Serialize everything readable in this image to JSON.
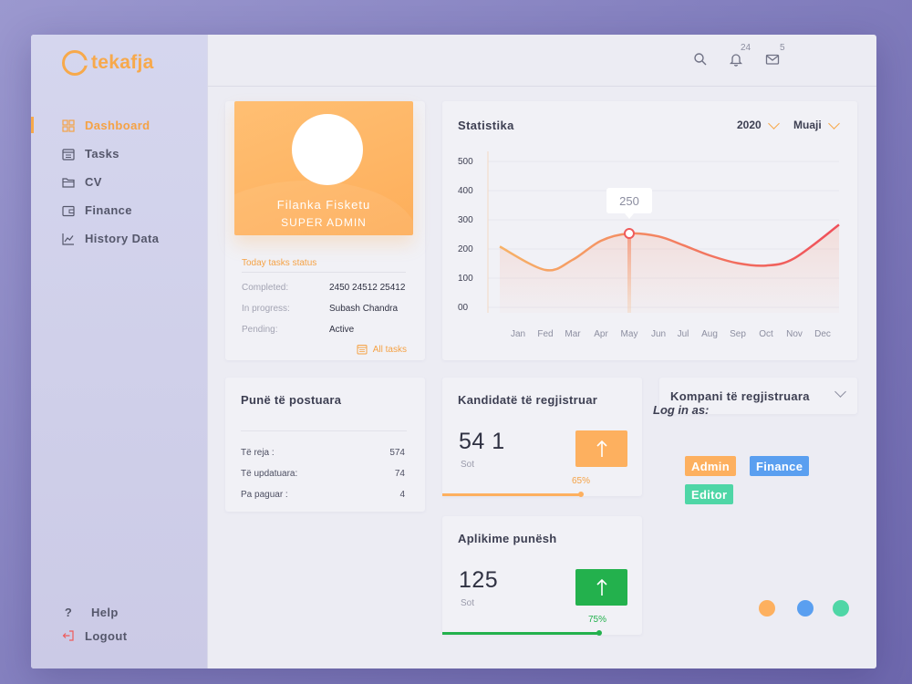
{
  "brand": {
    "name": "tekafja",
    "accent": "#f7a94b"
  },
  "sidebar": {
    "items": [
      {
        "label": "Dashboard",
        "icon": "grid-icon",
        "active": true
      },
      {
        "label": "Tasks",
        "icon": "calendar-icon",
        "active": false
      },
      {
        "label": "CV",
        "icon": "folder-icon",
        "active": false
      },
      {
        "label": "Finance",
        "icon": "wallet-icon",
        "active": false
      },
      {
        "label": "History Data",
        "icon": "line-chart-icon",
        "active": false
      }
    ],
    "help": {
      "label": "Help",
      "glyph": "?"
    },
    "logout": {
      "label": "Logout"
    }
  },
  "header": {
    "notifications_count": "24",
    "messages_count": "5"
  },
  "profile": {
    "name": "Filanka  Fisketu",
    "role": "SUPER ADMIN",
    "tasks_status_title": "Today tasks status",
    "rows": [
      {
        "key": "Completed:",
        "value": "2450 24512 25412"
      },
      {
        "key": "In progress:",
        "value": "Subash Chandra"
      },
      {
        "key": "Pending:",
        "value": "Active"
      }
    ],
    "all_tasks_label": "All tasks"
  },
  "statistika": {
    "title": "Statistika",
    "year_select": "2020",
    "period_select": "Muaji"
  },
  "chart_data": {
    "type": "line",
    "title": "Statistika",
    "categories": [
      "Jan",
      "Fed",
      "Mar",
      "Apr",
      "May",
      "Jun",
      "Jul",
      "Aug",
      "Sep",
      "Oct",
      "Nov",
      "Dec"
    ],
    "y_tick_labels": [
      "500",
      "400",
      "300",
      "200",
      "100",
      "00"
    ],
    "ylim": [
      0,
      500
    ],
    "values": [
      205,
      125,
      160,
      225,
      250,
      240,
      210,
      175,
      148,
      140,
      165,
      280
    ],
    "highlight": {
      "category": "May",
      "value": 250,
      "label": "250"
    },
    "grid": true,
    "line_colors": [
      "#f7b267",
      "#ef4f5a"
    ]
  },
  "posted_jobs": {
    "title": "Punë të postuara",
    "rows": [
      {
        "label": "Të reja :",
        "value": "574"
      },
      {
        "label": "Të updatuara:",
        "value": "74"
      },
      {
        "label": "Pa paguar :",
        "value": "4"
      }
    ]
  },
  "candidates": {
    "title": "Kandidatë të regjistruar",
    "count": "54 1",
    "sub": "Sot",
    "percent": "65%",
    "percent_value": 0.65,
    "color": "#fdb05f"
  },
  "applications": {
    "title": "Aplikime punësh",
    "count": "125",
    "sub": "Sot",
    "percent": "75%",
    "percent_value": 0.75,
    "color": "#23b14d"
  },
  "companies": {
    "title": "Kompani të regjistruara",
    "login_as_label": "Log in as:",
    "roles": [
      {
        "label": "Admin",
        "color": "#fdb05f"
      },
      {
        "label": "Finance",
        "color": "#5a9ff0"
      },
      {
        "label": "Editor",
        "color": "#4fd6a6"
      }
    ]
  },
  "theme_dots": [
    "#fdb05f",
    "#5a9ff0",
    "#4fd6a6"
  ]
}
